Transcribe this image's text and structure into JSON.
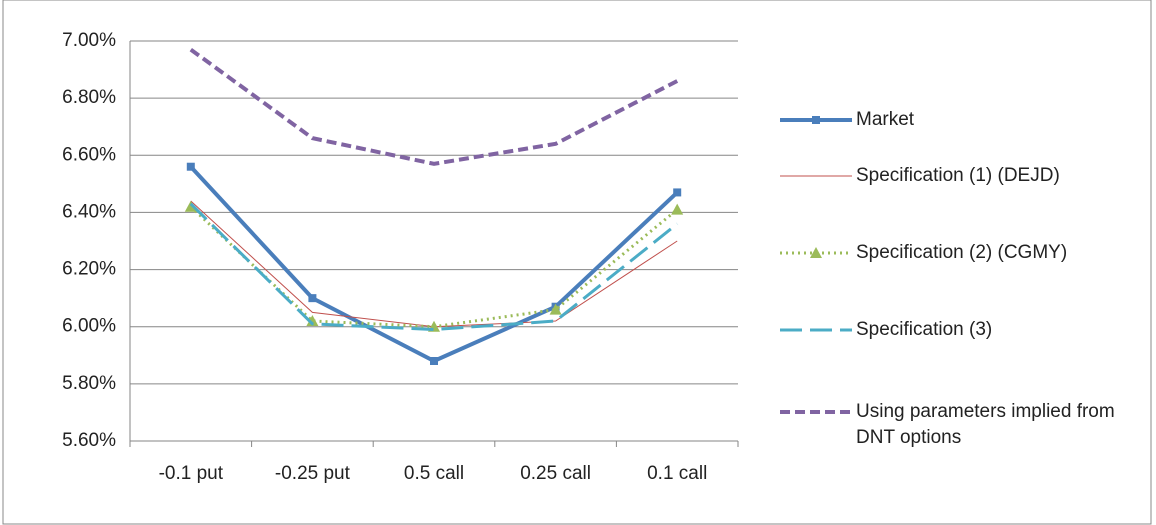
{
  "chart_data": {
    "type": "line",
    "categories": [
      "-0.1 put",
      "-0.25 put",
      "0.5 call",
      "0.25 call",
      "0.1 call"
    ],
    "series": [
      {
        "name": "Market",
        "color": "#4a7ebb",
        "width": 4,
        "dash": "solid",
        "marker": "square",
        "values": [
          6.56,
          6.1,
          5.88,
          6.07,
          6.47
        ]
      },
      {
        "name": "Specification (1) (DEJD)",
        "color": "#c0504d",
        "width": 1,
        "dash": "solid",
        "marker": "none",
        "values": [
          6.44,
          6.05,
          6.0,
          6.02,
          6.3
        ]
      },
      {
        "name": "Specification (2) (CGMY)",
        "color": "#9bbb59",
        "width": 3,
        "dash": "dotted",
        "marker": "triangle",
        "values": [
          6.42,
          6.02,
          6.0,
          6.06,
          6.41
        ]
      },
      {
        "name": "Specification (3)",
        "color": "#4bacc6",
        "width": 3,
        "dash": "long",
        "marker": "none",
        "values": [
          6.43,
          6.01,
          5.99,
          6.02,
          6.36
        ]
      },
      {
        "name": "Using parameters implied from DNT options",
        "color": "#8064a2",
        "width": 4,
        "dash": "short",
        "marker": "none",
        "values": [
          6.97,
          6.66,
          6.57,
          6.64,
          6.86
        ]
      }
    ],
    "ylim": [
      5.6,
      7.0
    ],
    "yticks": [
      {
        "value": 5.6,
        "label": "5.60%"
      },
      {
        "value": 5.8,
        "label": "5.80%"
      },
      {
        "value": 6.0,
        "label": "6.00%"
      },
      {
        "value": 6.2,
        "label": "6.20%"
      },
      {
        "value": 6.4,
        "label": "6.40%"
      },
      {
        "value": 6.6,
        "label": "6.60%"
      },
      {
        "value": 6.8,
        "label": "6.80%"
      },
      {
        "value": 7.0,
        "label": "7.00%"
      }
    ],
    "grid": true
  }
}
